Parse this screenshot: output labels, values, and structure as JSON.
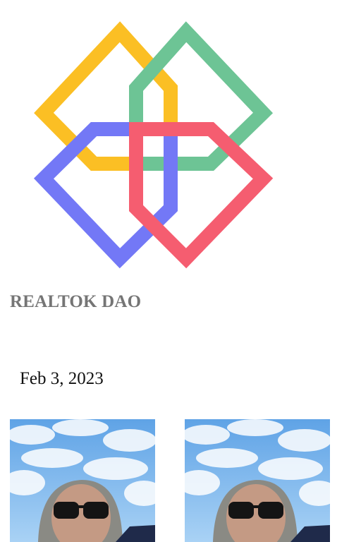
{
  "organization": {
    "name": "REALTOK DAO",
    "logo_icon": "interlocking-diamonds-logo-icon",
    "logo_colors": {
      "yellow": "#fbbf24",
      "green": "#6dc495",
      "blue": "#7378f6",
      "red": "#f55d70"
    }
  },
  "post": {
    "date": "Feb 3, 2023"
  },
  "gallery": {
    "items": [
      {
        "icon": "selfie-photo-icon"
      },
      {
        "icon": "selfie-photo-icon"
      }
    ]
  }
}
